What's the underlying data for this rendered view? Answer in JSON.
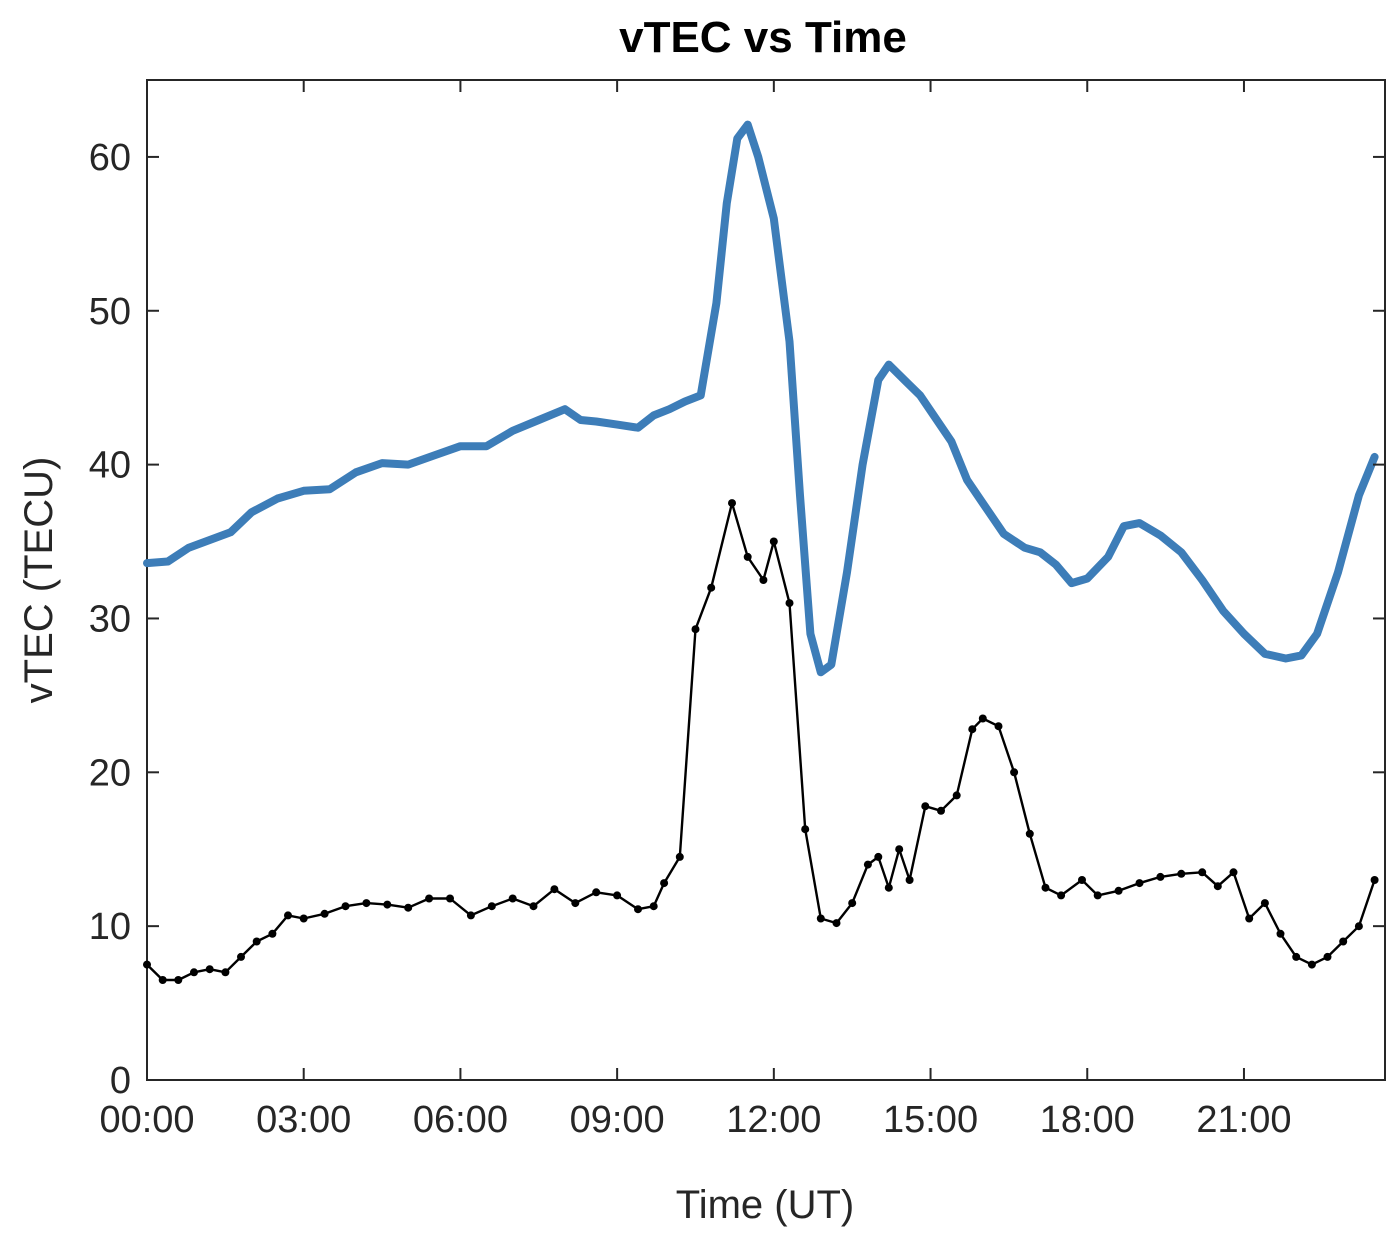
{
  "chart_data": {
    "type": "line",
    "title": "vTEC vs Time",
    "xlabel": "Time (UT)",
    "ylabel": "vTEC (TECU)",
    "x_unit": "hours UT",
    "xlim": [
      0,
      23.7
    ],
    "ylim": [
      0,
      65
    ],
    "xticks": [
      {
        "value": 0,
        "label": "00:00"
      },
      {
        "value": 3,
        "label": "03:00"
      },
      {
        "value": 6,
        "label": "06:00"
      },
      {
        "value": 9,
        "label": "09:00"
      },
      {
        "value": 12,
        "label": "12:00"
      },
      {
        "value": 15,
        "label": "15:00"
      },
      {
        "value": 18,
        "label": "18:00"
      },
      {
        "value": 21,
        "label": "21:00"
      }
    ],
    "yticks": [
      {
        "value": 0,
        "label": "0"
      },
      {
        "value": 10,
        "label": "10"
      },
      {
        "value": 20,
        "label": "20"
      },
      {
        "value": 30,
        "label": "30"
      },
      {
        "value": 40,
        "label": "40"
      },
      {
        "value": 50,
        "label": "50"
      },
      {
        "value": 60,
        "label": "60"
      }
    ],
    "grid": false,
    "legend": "none",
    "series": [
      {
        "color": "#3d7db8",
        "line_width": "thick",
        "markers": false,
        "points": [
          [
            0.0,
            33.6
          ],
          [
            0.4,
            33.7
          ],
          [
            0.8,
            34.6
          ],
          [
            1.2,
            35.1
          ],
          [
            1.6,
            35.6
          ],
          [
            2.0,
            36.9
          ],
          [
            2.5,
            37.8
          ],
          [
            3.0,
            38.3
          ],
          [
            3.5,
            38.4
          ],
          [
            4.0,
            39.5
          ],
          [
            4.5,
            40.1
          ],
          [
            5.0,
            40.0
          ],
          [
            5.5,
            40.6
          ],
          [
            6.0,
            41.2
          ],
          [
            6.5,
            41.2
          ],
          [
            7.0,
            42.2
          ],
          [
            7.5,
            42.9
          ],
          [
            8.0,
            43.6
          ],
          [
            8.3,
            42.9
          ],
          [
            8.6,
            42.8
          ],
          [
            9.0,
            42.6
          ],
          [
            9.4,
            42.4
          ],
          [
            9.7,
            43.2
          ],
          [
            10.0,
            43.6
          ],
          [
            10.3,
            44.1
          ],
          [
            10.6,
            44.5
          ],
          [
            10.9,
            50.5
          ],
          [
            11.1,
            57.0
          ],
          [
            11.3,
            61.2
          ],
          [
            11.5,
            62.1
          ],
          [
            11.7,
            60.0
          ],
          [
            12.0,
            56.0
          ],
          [
            12.3,
            48.0
          ],
          [
            12.5,
            38.0
          ],
          [
            12.7,
            29.0
          ],
          [
            12.9,
            26.5
          ],
          [
            13.1,
            27.0
          ],
          [
            13.4,
            33.0
          ],
          [
            13.7,
            40.0
          ],
          [
            14.0,
            45.5
          ],
          [
            14.2,
            46.5
          ],
          [
            14.5,
            45.5
          ],
          [
            14.8,
            44.5
          ],
          [
            15.1,
            43.0
          ],
          [
            15.4,
            41.5
          ],
          [
            15.7,
            39.0
          ],
          [
            16.0,
            37.5
          ],
          [
            16.4,
            35.5
          ],
          [
            16.8,
            34.6
          ],
          [
            17.1,
            34.3
          ],
          [
            17.4,
            33.5
          ],
          [
            17.7,
            32.3
          ],
          [
            18.0,
            32.6
          ],
          [
            18.4,
            34.0
          ],
          [
            18.7,
            36.0
          ],
          [
            19.0,
            36.2
          ],
          [
            19.4,
            35.4
          ],
          [
            19.8,
            34.3
          ],
          [
            20.2,
            32.5
          ],
          [
            20.6,
            30.5
          ],
          [
            21.0,
            29.0
          ],
          [
            21.4,
            27.7
          ],
          [
            21.8,
            27.4
          ],
          [
            22.1,
            27.6
          ],
          [
            22.4,
            29.0
          ],
          [
            22.8,
            33.0
          ],
          [
            23.2,
            38.0
          ],
          [
            23.5,
            40.5
          ]
        ]
      },
      {
        "color": "#000000",
        "line_width": "thin",
        "markers": true,
        "points": [
          [
            0.0,
            7.5
          ],
          [
            0.3,
            6.5
          ],
          [
            0.6,
            6.5
          ],
          [
            0.9,
            7.0
          ],
          [
            1.2,
            7.2
          ],
          [
            1.5,
            7.0
          ],
          [
            1.8,
            8.0
          ],
          [
            2.1,
            9.0
          ],
          [
            2.4,
            9.5
          ],
          [
            2.7,
            10.7
          ],
          [
            3.0,
            10.5
          ],
          [
            3.4,
            10.8
          ],
          [
            3.8,
            11.3
          ],
          [
            4.2,
            11.5
          ],
          [
            4.6,
            11.4
          ],
          [
            5.0,
            11.2
          ],
          [
            5.4,
            11.8
          ],
          [
            5.8,
            11.8
          ],
          [
            6.2,
            10.7
          ],
          [
            6.6,
            11.3
          ],
          [
            7.0,
            11.8
          ],
          [
            7.4,
            11.3
          ],
          [
            7.8,
            12.4
          ],
          [
            8.2,
            11.5
          ],
          [
            8.6,
            12.2
          ],
          [
            9.0,
            12.0
          ],
          [
            9.4,
            11.1
          ],
          [
            9.7,
            11.3
          ],
          [
            9.9,
            12.8
          ],
          [
            10.2,
            14.5
          ],
          [
            10.5,
            29.3
          ],
          [
            10.8,
            32.0
          ],
          [
            11.2,
            37.5
          ],
          [
            11.5,
            34.0
          ],
          [
            11.8,
            32.5
          ],
          [
            12.0,
            35.0
          ],
          [
            12.3,
            31.0
          ],
          [
            12.6,
            16.3
          ],
          [
            12.9,
            10.5
          ],
          [
            13.2,
            10.2
          ],
          [
            13.5,
            11.5
          ],
          [
            13.8,
            14.0
          ],
          [
            14.0,
            14.5
          ],
          [
            14.2,
            12.5
          ],
          [
            14.4,
            15.0
          ],
          [
            14.6,
            13.0
          ],
          [
            14.9,
            17.8
          ],
          [
            15.2,
            17.5
          ],
          [
            15.5,
            18.5
          ],
          [
            15.8,
            22.8
          ],
          [
            16.0,
            23.5
          ],
          [
            16.3,
            23.0
          ],
          [
            16.6,
            20.0
          ],
          [
            16.9,
            16.0
          ],
          [
            17.2,
            12.5
          ],
          [
            17.5,
            12.0
          ],
          [
            17.9,
            13.0
          ],
          [
            18.2,
            12.0
          ],
          [
            18.6,
            12.3
          ],
          [
            19.0,
            12.8
          ],
          [
            19.4,
            13.2
          ],
          [
            19.8,
            13.4
          ],
          [
            20.2,
            13.5
          ],
          [
            20.5,
            12.6
          ],
          [
            20.8,
            13.5
          ],
          [
            21.1,
            10.5
          ],
          [
            21.4,
            11.5
          ],
          [
            21.7,
            9.5
          ],
          [
            22.0,
            8.0
          ],
          [
            22.3,
            7.5
          ],
          [
            22.6,
            8.0
          ],
          [
            22.9,
            9.0
          ],
          [
            23.2,
            10.0
          ],
          [
            23.5,
            13.0
          ]
        ]
      }
    ]
  }
}
